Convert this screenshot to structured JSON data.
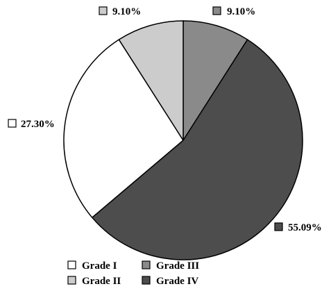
{
  "chart_data": {
    "type": "pie",
    "title": "",
    "slices": [
      {
        "label": "Grade III",
        "value": 9.1,
        "display": "9.10%",
        "color": "#8a8a8a"
      },
      {
        "label": "Grade IV",
        "value": 55.09,
        "display": "55.09%",
        "color": "#4d4d4d"
      },
      {
        "label": "Grade I",
        "value": 27.3,
        "display": "27.30%",
        "color": "#ffffff"
      },
      {
        "label": "Grade II",
        "value": 9.1,
        "display": "9.10%",
        "color": "#cccccc"
      }
    ],
    "legend": {
      "position": "bottom",
      "items": [
        {
          "label": "Grade I",
          "color": "#ffffff"
        },
        {
          "label": "Grade III",
          "color": "#8a8a8a"
        },
        {
          "label": "Grade II",
          "color": "#cccccc"
        },
        {
          "label": "Grade IV",
          "color": "#4d4d4d"
        }
      ]
    },
    "start_angle_deg": 0,
    "direction": "clockwise",
    "stroke_color": "#000000"
  }
}
